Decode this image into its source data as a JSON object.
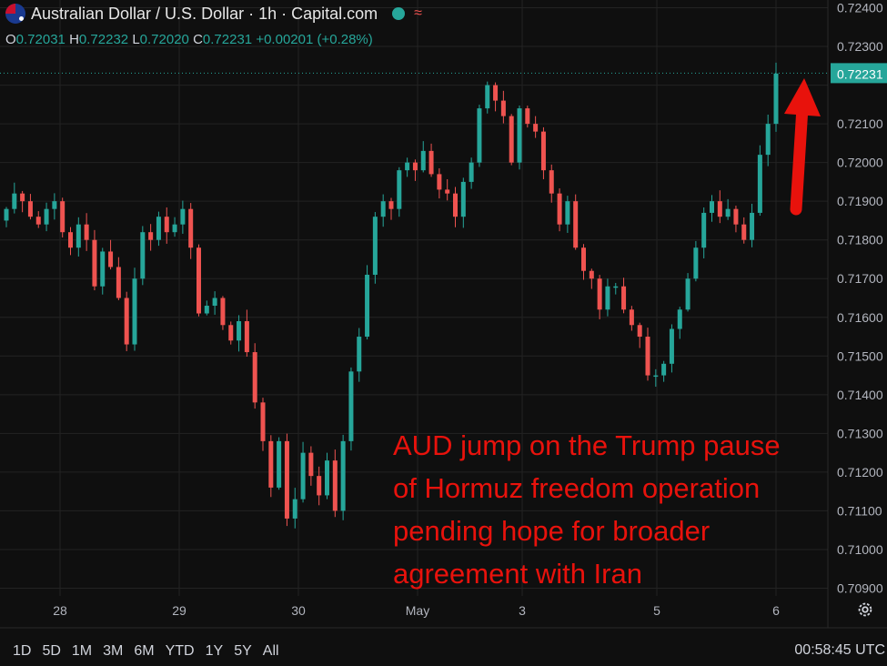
{
  "header": {
    "title": "Australian Dollar / U.S. Dollar · 1h · Capital.com",
    "wave_glyph": "≈",
    "open_key": "O",
    "open": "0.72031",
    "high_key": "H",
    "high": "0.72232",
    "low_key": "L",
    "low": "0.72020",
    "close_key": "C",
    "close": "0.72231",
    "change": "+0.00201 (+0.28%)"
  },
  "colors": {
    "up": "#26a69a",
    "down": "#ef5350",
    "annotation": "#e8120c",
    "background": "#0f0f0f",
    "grid": "#232323"
  },
  "toolbar": {
    "ranges": [
      "1D",
      "5D",
      "1M",
      "3M",
      "6M",
      "YTD",
      "1Y",
      "5Y",
      "All"
    ]
  },
  "status": {
    "clock": "00:58:45 UTC"
  },
  "chart_data": {
    "type": "candlestick",
    "ylim": [
      0.7088,
      0.7242
    ],
    "y_ticks": [
      "0.72400",
      "0.72300",
      "0.72200",
      "0.72100",
      "0.72000",
      "0.71900",
      "0.71800",
      "0.71700",
      "0.71600",
      "0.71500",
      "0.71400",
      "0.71300",
      "0.71200",
      "0.71100",
      "0.71000",
      "0.70900"
    ],
    "x_ticks": [
      "28",
      "29",
      "30",
      "May",
      "3",
      "5",
      "6"
    ],
    "last_price_label": "0.72231",
    "last_price": 0.72231,
    "annotation_lines": [
      "AUD jump on the Trump pause",
      "of Hormuz freedom operation",
      "pending hope for broader",
      "agreement with Iran"
    ],
    "close_path": [
      0.7188,
      0.7192,
      0.719,
      0.7186,
      0.7184,
      0.7188,
      0.719,
      0.7182,
      0.7178,
      0.7184,
      0.718,
      0.7168,
      0.7177,
      0.7173,
      0.7165,
      0.7153,
      0.717,
      0.7182,
      0.718,
      0.7186,
      0.7182,
      0.7184,
      0.7188,
      0.7178,
      0.7161,
      0.7163,
      0.7165,
      0.7158,
      0.7154,
      0.7159,
      0.7151,
      0.7138,
      0.7128,
      0.7116,
      0.7128,
      0.7108,
      0.7113,
      0.7125,
      0.7119,
      0.7114,
      0.7123,
      0.711,
      0.7128,
      0.7146,
      0.7155,
      0.7171,
      0.7186,
      0.719,
      0.7188,
      0.7198,
      0.72,
      0.7198,
      0.7203,
      0.7197,
      0.7193,
      0.7192,
      0.7186,
      0.7195,
      0.72,
      0.7214,
      0.722,
      0.7216,
      0.7212,
      0.72,
      0.7214,
      0.721,
      0.7208,
      0.7198,
      0.7192,
      0.7184,
      0.719,
      0.7178,
      0.7172,
      0.717,
      0.7162,
      0.7168,
      0.7168,
      0.7162,
      0.7158,
      0.7155,
      0.7145,
      0.7145,
      0.7148,
      0.7157,
      0.7162,
      0.717,
      0.7178,
      0.7187,
      0.719,
      0.7186,
      0.7188,
      0.7184,
      0.718,
      0.7187,
      0.7202,
      0.721,
      0.7223
    ]
  }
}
